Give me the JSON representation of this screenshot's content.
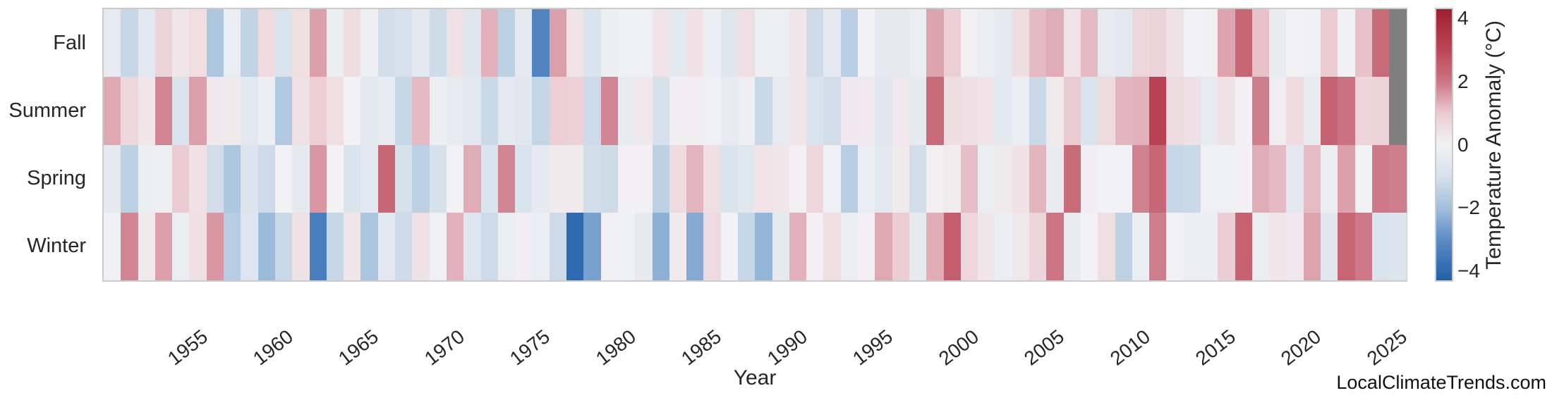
{
  "watermark": "LocalClimateTrends.com",
  "chart_data": {
    "type": "heatmap",
    "title": "",
    "xlabel": "Year",
    "rows": [
      "Fall",
      "Summer",
      "Spring",
      "Winter"
    ],
    "years": [
      1950,
      1951,
      1952,
      1953,
      1954,
      1955,
      1956,
      1957,
      1958,
      1959,
      1960,
      1961,
      1962,
      1963,
      1964,
      1965,
      1966,
      1967,
      1968,
      1969,
      1970,
      1971,
      1972,
      1973,
      1974,
      1975,
      1976,
      1977,
      1978,
      1979,
      1980,
      1981,
      1982,
      1983,
      1984,
      1985,
      1986,
      1987,
      1988,
      1989,
      1990,
      1991,
      1992,
      1993,
      1994,
      1995,
      1996,
      1997,
      1998,
      1999,
      2000,
      2001,
      2002,
      2003,
      2004,
      2005,
      2006,
      2007,
      2008,
      2009,
      2010,
      2011,
      2012,
      2013,
      2014,
      2015,
      2016,
      2017,
      2018,
      2019,
      2020,
      2021,
      2022,
      2023,
      2024,
      2025
    ],
    "x_ticks": [
      1955,
      1960,
      1965,
      1970,
      1975,
      1980,
      1985,
      1990,
      1995,
      2000,
      2005,
      2010,
      2015,
      2020,
      2025
    ],
    "series": [
      {
        "name": "Fall",
        "values": [
          -0.4,
          -1.3,
          -0.6,
          0.8,
          0.3,
          0.5,
          -1.8,
          -0.3,
          -1.4,
          0.6,
          -0.9,
          0.5,
          1.5,
          -0.2,
          0.55,
          -0.15,
          -1.1,
          -0.95,
          -0.6,
          -1.15,
          0.4,
          -0.7,
          1.3,
          -1.5,
          -0.5,
          -3.2,
          1.5,
          0.35,
          -0.85,
          -0.2,
          -0.1,
          -0.1,
          0.35,
          -0.55,
          0.4,
          -0.25,
          -0.7,
          0.5,
          -0.15,
          -0.15,
          0.3,
          -1.15,
          -0.45,
          -1.55,
          0.0,
          -0.5,
          -0.5,
          -0.3,
          1.45,
          0.9,
          0.05,
          -0.3,
          -0.5,
          0.55,
          1.2,
          1.35,
          0.38,
          1.2,
          -0.4,
          -0.55,
          0.7,
          0.8,
          0.4,
          0.0,
          -0.05,
          1.45,
          2.3,
          1.1,
          -0.35,
          0.0,
          -0.12,
          1.0,
          -0.05,
          1.1,
          2.2,
          null
        ]
      },
      {
        "name": "Summer",
        "values": [
          1.4,
          0.7,
          0.3,
          1.8,
          -0.9,
          1.5,
          0.25,
          0.2,
          -0.6,
          -0.25,
          -1.7,
          0.4,
          0.9,
          0.5,
          0.0,
          -0.6,
          -0.35,
          -1.3,
          1.2,
          -0.25,
          -0.4,
          -0.55,
          -1.25,
          -0.45,
          -0.65,
          -1.35,
          0.9,
          0.85,
          -1.2,
          1.8,
          -0.4,
          0.25,
          -1.0,
          0.1,
          0.1,
          -0.1,
          -0.4,
          -0.15,
          -1.25,
          -0.4,
          0.3,
          -0.9,
          -1.1,
          0.25,
          0.22,
          -0.65,
          0.25,
          -0.45,
          2.2,
          0.55,
          0.45,
          0.35,
          -0.55,
          -0.25,
          -1.25,
          0.2,
          1.0,
          -0.85,
          0.6,
          1.25,
          1.3,
          3.2,
          0.6,
          0.45,
          -0.4,
          0.4,
          0.05,
          1.9,
          0.1,
          0.6,
          -0.4,
          2.4,
          2.1,
          0.75,
          0.8,
          null
        ]
      },
      {
        "name": "Spring",
        "values": [
          -0.5,
          -1.5,
          -0.2,
          -0.15,
          1.0,
          0.4,
          -1.1,
          -1.8,
          -0.8,
          -1.2,
          0.0,
          -0.45,
          1.6,
          0.0,
          -0.85,
          -0.6,
          2.3,
          -1.0,
          -1.5,
          -1.0,
          0.0,
          1.35,
          -0.85,
          1.8,
          -0.85,
          -0.5,
          0.2,
          0.2,
          -1.1,
          -1.15,
          0.05,
          0.05,
          -1.5,
          0.6,
          1.25,
          0.5,
          -0.85,
          -0.65,
          0.35,
          0.3,
          0.05,
          0.7,
          -0.1,
          -1.6,
          -0.28,
          -0.6,
          0.2,
          -1.1,
          0.05,
          0.18,
          1.15,
          -0.3,
          0.2,
          0.4,
          1.25,
          -0.35,
          2.2,
          0.1,
          0.03,
          0.0,
          1.85,
          2.3,
          -1.3,
          -1.25,
          -0.1,
          -0.1,
          0.05,
          1.35,
          1.2,
          -0.6,
          1.18,
          -0.2,
          1.5,
          0.0,
          1.95,
          1.9
        ]
      },
      {
        "name": "Winter",
        "values": [
          -0.1,
          1.8,
          0.2,
          1.5,
          -0.3,
          0.45,
          1.6,
          -1.6,
          -0.75,
          -2.1,
          -1.25,
          0.4,
          -3.4,
          -1.3,
          0.3,
          -1.85,
          -0.6,
          -1.15,
          0.4,
          -0.1,
          1.3,
          -0.75,
          -1.2,
          -0.3,
          0.1,
          -0.3,
          -1.2,
          -4.0,
          -2.6,
          0.05,
          -0.1,
          -0.45,
          -2.3,
          0.2,
          -2.4,
          0.6,
          0.0,
          -1.3,
          -2.2,
          -0.5,
          1.3,
          0.05,
          0.5,
          -0.3,
          0.08,
          1.4,
          0.95,
          -0.5,
          1.35,
          2.5,
          0.7,
          0.3,
          -0.2,
          0.28,
          0.75,
          2.0,
          -0.35,
          0.0,
          0.5,
          -1.45,
          -0.25,
          1.9,
          0.02,
          -0.22,
          -0.2,
          0.95,
          2.4,
          -0.3,
          0.3,
          0.25,
          1.45,
          -0.65,
          2.35,
          1.95,
          -0.85,
          -0.8
        ]
      }
    ],
    "colorbar": {
      "label": "Temperature Anomaly (°C)",
      "ticks": [
        4,
        2,
        0,
        -2,
        -4
      ],
      "vmin": -4.3,
      "vmax": 4.3
    },
    "nan_color": "#7f7f7f",
    "frame_color": "#cbcbcb",
    "colormap_stops": [
      {
        "v": -4.3,
        "c": "#2160a9"
      },
      {
        "v": -3.0,
        "c": "#5b8cc4"
      },
      {
        "v": -2.0,
        "c": "#a2c0dc"
      },
      {
        "v": -1.0,
        "c": "#d6e1ec"
      },
      {
        "v": 0.0,
        "c": "#f2f2f4"
      },
      {
        "v": 1.0,
        "c": "#ebcbd2"
      },
      {
        "v": 2.0,
        "c": "#cc7583"
      },
      {
        "v": 3.0,
        "c": "#bc4758"
      },
      {
        "v": 4.3,
        "c": "#a01e2e"
      }
    ]
  }
}
